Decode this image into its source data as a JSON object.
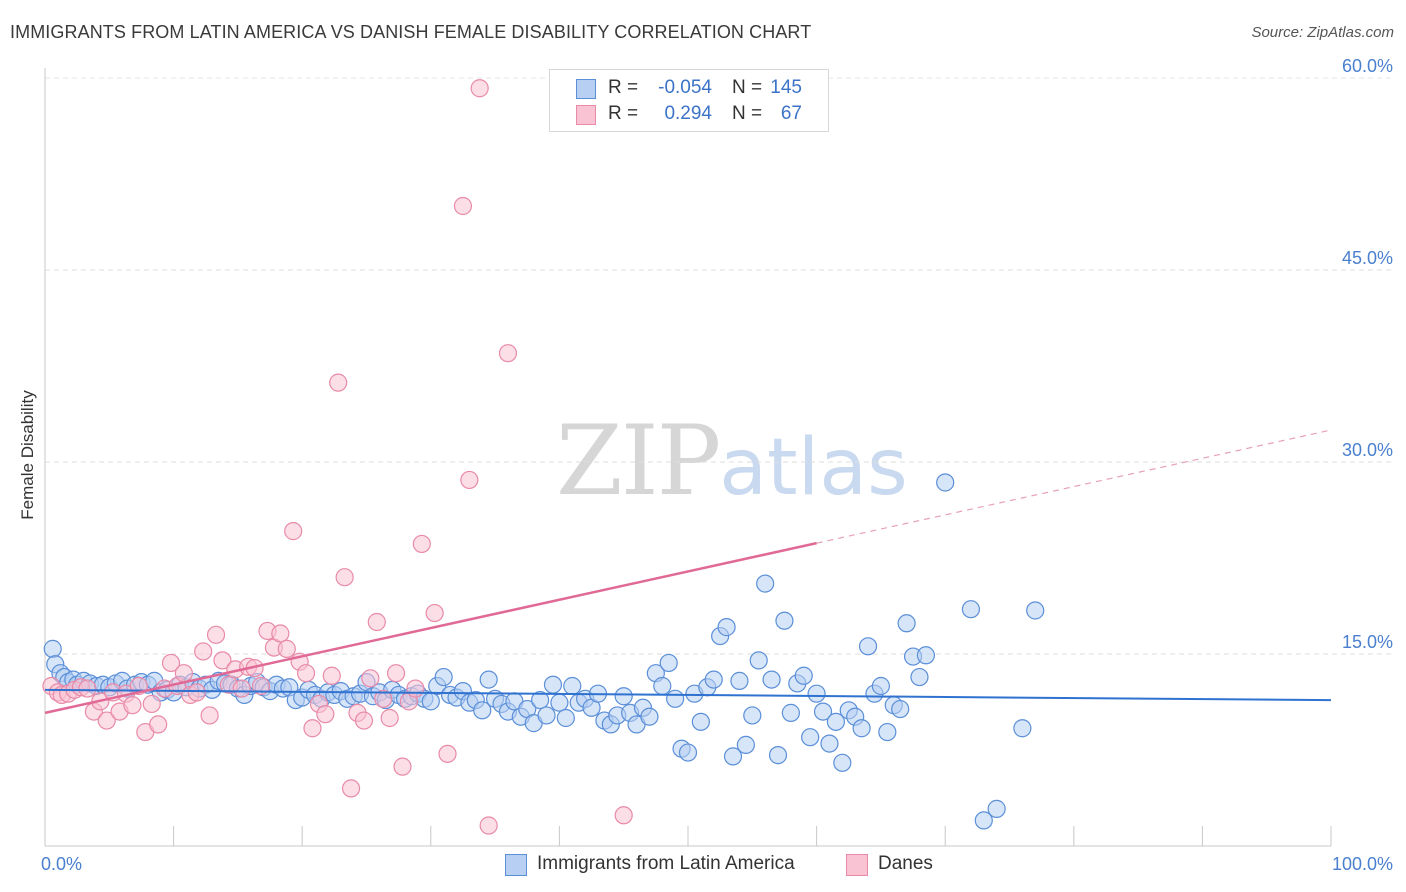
{
  "title": "IMMIGRANTS FROM LATIN AMERICA VS DANISH FEMALE DISABILITY CORRELATION CHART",
  "source": "Source: ZipAtlas.com",
  "watermark": {
    "zip": "ZIP",
    "atlas": "atlas"
  },
  "legend": {
    "rows": [
      {
        "r_label": "R =",
        "r_value": "-0.054",
        "n_label": "N =",
        "n_value": "145",
        "fill": "#b7cff2",
        "stroke": "#5b8fd8"
      },
      {
        "r_label": "R =",
        "r_value": "0.294",
        "n_label": "N =",
        "n_value": "67",
        "fill": "#f9c3d4",
        "stroke": "#e88aa8"
      }
    ]
  },
  "bottom_legend": [
    {
      "label": "Immigrants from Latin America",
      "fill": "#b7cff2",
      "stroke": "#5b8fd8"
    },
    {
      "label": "Danes",
      "fill": "#f9c3d4",
      "stroke": "#e88aa8"
    }
  ],
  "chart_data": {
    "type": "scatter",
    "title": "IMMIGRANTS FROM LATIN AMERICA VS DANISH FEMALE DISABILITY CORRELATION CHART",
    "xlabel": "",
    "ylabel": "Female Disability",
    "xlim": [
      0,
      100
    ],
    "ylim": [
      0,
      60
    ],
    "x_tick_labels": [
      "0.0%",
      "100.0%"
    ],
    "y_ticks": [
      15,
      30,
      45,
      60
    ],
    "y_tick_labels": [
      "15.0%",
      "30.0%",
      "45.0%",
      "60.0%"
    ],
    "grid": "horizontal dashed",
    "series": [
      {
        "name": "Immigrants from Latin America",
        "color": "#5b8fd8",
        "fill": "#b7cff2",
        "trend": {
          "x": [
            0,
            100
          ],
          "y": [
            12.2,
            11.4
          ],
          "dashed_from": null
        },
        "points": [
          [
            0.6,
            15.4
          ],
          [
            0.8,
            14.2
          ],
          [
            1.2,
            13.5
          ],
          [
            1.5,
            13.2
          ],
          [
            1.8,
            12.8
          ],
          [
            2.2,
            13.0
          ],
          [
            2.5,
            12.6
          ],
          [
            3.0,
            12.9
          ],
          [
            3.5,
            12.7
          ],
          [
            4.0,
            12.5
          ],
          [
            4.5,
            12.6
          ],
          [
            5.0,
            12.4
          ],
          [
            5.5,
            12.7
          ],
          [
            6.0,
            12.9
          ],
          [
            6.4,
            12.3
          ],
          [
            7.0,
            12.6
          ],
          [
            7.5,
            12.8
          ],
          [
            8.0,
            12.6
          ],
          [
            8.5,
            12.9
          ],
          [
            9.0,
            12.0
          ],
          [
            9.5,
            12.2
          ],
          [
            10.0,
            12.0
          ],
          [
            10.5,
            12.6
          ],
          [
            11.0,
            12.4
          ],
          [
            11.5,
            12.8
          ],
          [
            12.0,
            12.3
          ],
          [
            12.5,
            12.6
          ],
          [
            13.0,
            12.2
          ],
          [
            13.5,
            12.9
          ],
          [
            14.0,
            12.7
          ],
          [
            14.5,
            12.6
          ],
          [
            15.0,
            12.3
          ],
          [
            15.5,
            11.8
          ],
          [
            16.0,
            12.5
          ],
          [
            16.5,
            12.8
          ],
          [
            17.0,
            12.4
          ],
          [
            17.5,
            12.1
          ],
          [
            18.0,
            12.6
          ],
          [
            18.5,
            12.3
          ],
          [
            19.0,
            12.4
          ],
          [
            19.5,
            11.4
          ],
          [
            20.0,
            11.6
          ],
          [
            20.5,
            12.2
          ],
          [
            21.0,
            11.8
          ],
          [
            21.5,
            11.5
          ],
          [
            22.0,
            12.0
          ],
          [
            22.5,
            11.8
          ],
          [
            23.0,
            12.1
          ],
          [
            23.5,
            11.5
          ],
          [
            24.0,
            11.7
          ],
          [
            24.5,
            11.9
          ],
          [
            25.0,
            12.8
          ],
          [
            25.5,
            11.7
          ],
          [
            26.0,
            12.0
          ],
          [
            26.5,
            11.4
          ],
          [
            27.0,
            12.2
          ],
          [
            27.5,
            11.8
          ],
          [
            28.0,
            11.5
          ],
          [
            28.5,
            11.7
          ],
          [
            29.0,
            11.9
          ],
          [
            29.5,
            11.5
          ],
          [
            30.0,
            11.3
          ],
          [
            30.5,
            12.5
          ],
          [
            31.0,
            13.2
          ],
          [
            31.5,
            11.8
          ],
          [
            32.0,
            11.6
          ],
          [
            32.5,
            12.1
          ],
          [
            33.0,
            11.2
          ],
          [
            33.5,
            11.4
          ],
          [
            34.0,
            10.6
          ],
          [
            34.5,
            13.0
          ],
          [
            35.0,
            11.5
          ],
          [
            35.5,
            11.1
          ],
          [
            36.0,
            10.5
          ],
          [
            36.5,
            11.3
          ],
          [
            37.0,
            10.1
          ],
          [
            37.5,
            10.7
          ],
          [
            38.0,
            9.6
          ],
          [
            38.5,
            11.4
          ],
          [
            39.0,
            10.2
          ],
          [
            39.5,
            12.6
          ],
          [
            40.0,
            11.2
          ],
          [
            40.5,
            10.0
          ],
          [
            41.0,
            12.5
          ],
          [
            41.5,
            11.2
          ],
          [
            42.0,
            11.5
          ],
          [
            42.5,
            10.8
          ],
          [
            43.0,
            11.9
          ],
          [
            43.5,
            9.8
          ],
          [
            44.0,
            9.5
          ],
          [
            44.5,
            10.2
          ],
          [
            45.0,
            11.7
          ],
          [
            45.5,
            10.4
          ],
          [
            46.0,
            9.5
          ],
          [
            46.5,
            10.8
          ],
          [
            47.0,
            10.1
          ],
          [
            47.5,
            13.5
          ],
          [
            48.0,
            12.5
          ],
          [
            48.5,
            14.3
          ],
          [
            49.0,
            11.5
          ],
          [
            49.5,
            7.6
          ],
          [
            50.0,
            7.3
          ],
          [
            50.5,
            11.9
          ],
          [
            51.0,
            9.7
          ],
          [
            51.5,
            12.4
          ],
          [
            52.0,
            13.0
          ],
          [
            52.5,
            16.4
          ],
          [
            53.0,
            17.1
          ],
          [
            53.5,
            7.0
          ],
          [
            54.0,
            12.9
          ],
          [
            54.5,
            7.9
          ],
          [
            55.0,
            10.2
          ],
          [
            55.5,
            14.5
          ],
          [
            56.0,
            20.5
          ],
          [
            56.5,
            13.0
          ],
          [
            57.0,
            7.1
          ],
          [
            57.5,
            17.6
          ],
          [
            58.0,
            10.4
          ],
          [
            58.5,
            12.7
          ],
          [
            59.0,
            13.3
          ],
          [
            59.5,
            8.5
          ],
          [
            60.0,
            11.9
          ],
          [
            60.5,
            10.5
          ],
          [
            61.0,
            8.0
          ],
          [
            61.5,
            9.7
          ],
          [
            62.0,
            6.5
          ],
          [
            62.5,
            10.6
          ],
          [
            63.0,
            10.1
          ],
          [
            63.5,
            9.2
          ],
          [
            64.0,
            15.6
          ],
          [
            64.5,
            11.9
          ],
          [
            65.0,
            12.5
          ],
          [
            65.5,
            8.9
          ],
          [
            66.0,
            11.0
          ],
          [
            66.5,
            10.7
          ],
          [
            67.0,
            17.4
          ],
          [
            67.5,
            14.8
          ],
          [
            68.0,
            13.2
          ],
          [
            68.5,
            14.9
          ],
          [
            70.0,
            28.4
          ],
          [
            72.0,
            18.5
          ],
          [
            73.0,
            2.0
          ],
          [
            74.0,
            2.9
          ],
          [
            76.0,
            9.2
          ],
          [
            77.0,
            18.4
          ]
        ]
      },
      {
        "name": "Danes",
        "color": "#e88aa8",
        "fill": "#f9c3d4",
        "trend": {
          "x": [
            0,
            100
          ],
          "y": [
            10.4,
            32.5
          ],
          "solid_until": 60
        },
        "points": [
          [
            0.5,
            12.5
          ],
          [
            1.0,
            12.0
          ],
          [
            1.3,
            11.8
          ],
          [
            1.8,
            11.9
          ],
          [
            2.3,
            12.2
          ],
          [
            2.8,
            12.4
          ],
          [
            3.3,
            12.3
          ],
          [
            3.8,
            10.5
          ],
          [
            4.3,
            11.3
          ],
          [
            4.8,
            9.8
          ],
          [
            5.3,
            12.0
          ],
          [
            5.8,
            10.5
          ],
          [
            6.3,
            11.9
          ],
          [
            6.8,
            11.0
          ],
          [
            7.3,
            12.5
          ],
          [
            7.8,
            8.9
          ],
          [
            8.3,
            11.1
          ],
          [
            8.8,
            9.5
          ],
          [
            9.3,
            12.3
          ],
          [
            9.8,
            14.3
          ],
          [
            10.3,
            12.5
          ],
          [
            10.8,
            13.5
          ],
          [
            11.3,
            11.8
          ],
          [
            11.8,
            12.0
          ],
          [
            12.3,
            15.2
          ],
          [
            12.8,
            10.2
          ],
          [
            13.3,
            16.5
          ],
          [
            13.8,
            14.5
          ],
          [
            14.3,
            12.6
          ],
          [
            14.8,
            13.8
          ],
          [
            15.3,
            12.3
          ],
          [
            15.8,
            14.0
          ],
          [
            16.3,
            13.9
          ],
          [
            16.8,
            12.5
          ],
          [
            17.3,
            16.8
          ],
          [
            17.8,
            15.5
          ],
          [
            18.3,
            16.6
          ],
          [
            18.8,
            15.4
          ],
          [
            19.3,
            24.6
          ],
          [
            19.8,
            14.4
          ],
          [
            20.3,
            13.5
          ],
          [
            20.8,
            9.2
          ],
          [
            21.3,
            11.1
          ],
          [
            21.8,
            10.3
          ],
          [
            22.3,
            13.3
          ],
          [
            22.8,
            36.2
          ],
          [
            23.3,
            21.0
          ],
          [
            23.8,
            4.5
          ],
          [
            24.3,
            10.4
          ],
          [
            24.8,
            9.8
          ],
          [
            25.3,
            13.1
          ],
          [
            25.8,
            17.5
          ],
          [
            26.3,
            11.5
          ],
          [
            26.8,
            10.0
          ],
          [
            27.3,
            13.5
          ],
          [
            27.8,
            6.2
          ],
          [
            28.3,
            11.3
          ],
          [
            28.8,
            12.3
          ],
          [
            29.3,
            23.6
          ],
          [
            30.3,
            18.2
          ],
          [
            31.3,
            7.2
          ],
          [
            32.5,
            50.0
          ],
          [
            33.0,
            28.6
          ],
          [
            33.8,
            59.2
          ],
          [
            34.5,
            1.6
          ],
          [
            36.0,
            38.5
          ],
          [
            45.0,
            2.4
          ]
        ]
      }
    ]
  }
}
